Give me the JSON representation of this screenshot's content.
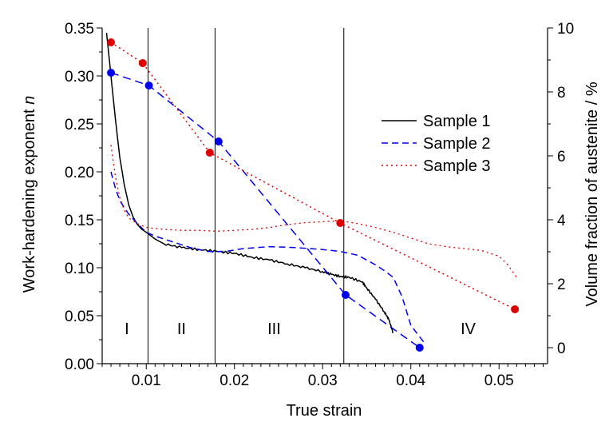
{
  "chart_data": {
    "type": "line",
    "x_axis": {
      "label": "True strain",
      "range": [
        0.005,
        0.0555
      ],
      "ticks": [
        "0.01",
        "0.02",
        "0.03",
        "0.04",
        "0.05"
      ]
    },
    "y_left_axis": {
      "label_prefix": "Work-hardening exponent ",
      "label_italic": "n",
      "range": [
        0,
        0.35
      ],
      "ticks": [
        "0.00",
        "0.05",
        "0.10",
        "0.15",
        "0.20",
        "0.25",
        "0.30",
        "0.35"
      ]
    },
    "y_right_axis": {
      "label": "Volume fraction of austenite / %",
      "range": [
        -0.5,
        10
      ],
      "ticks": [
        "0",
        "2",
        "4",
        "6",
        "8",
        "10"
      ]
    },
    "region_lines": [
      0.0102,
      0.0178,
      0.0324
    ],
    "regions": [
      {
        "label": "I",
        "x": 0.0078
      },
      {
        "label": "II",
        "x": 0.014
      },
      {
        "label": "III",
        "x": 0.0245
      },
      {
        "label": "IV",
        "x": 0.0465
      }
    ],
    "legend": {
      "position": "upper-right",
      "entries": [
        {
          "name": "Sample 1",
          "color": "#000000",
          "dash": "solid"
        },
        {
          "name": "Sample 2",
          "color": "#0000ee",
          "dash": "dashed"
        },
        {
          "name": "Sample 3",
          "color": "#dd0000",
          "dash": "dotted"
        }
      ]
    },
    "n_curves": [
      {
        "sample": "Sample 1",
        "color": "#000000",
        "dash": "solid",
        "width": 1.5,
        "jitter": true,
        "x": [
          0.0055,
          0.006,
          0.0065,
          0.007,
          0.0075,
          0.008,
          0.0085,
          0.009,
          0.0095,
          0.01,
          0.011,
          0.012,
          0.014,
          0.016,
          0.018,
          0.02,
          0.022,
          0.024,
          0.026,
          0.028,
          0.03,
          0.031,
          0.032,
          0.033,
          0.0345,
          0.035,
          0.036,
          0.037,
          0.0375,
          0.038
        ],
        "y": [
          0.345,
          0.3,
          0.255,
          0.215,
          0.187,
          0.166,
          0.153,
          0.145,
          0.14,
          0.137,
          0.13,
          0.125,
          0.121,
          0.119,
          0.117,
          0.115,
          0.111,
          0.108,
          0.104,
          0.1,
          0.096,
          0.093,
          0.091,
          0.09,
          0.085,
          0.079,
          0.067,
          0.054,
          0.046,
          0.032
        ]
      },
      {
        "sample": "Sample 2",
        "color": "#0000ee",
        "dash": "dashed",
        "width": 1.5,
        "jitter": false,
        "x": [
          0.006,
          0.0065,
          0.007,
          0.008,
          0.009,
          0.01,
          0.011,
          0.013,
          0.015,
          0.017,
          0.019,
          0.021,
          0.024,
          0.027,
          0.03,
          0.032,
          0.034,
          0.036,
          0.037,
          0.038,
          0.039,
          0.04,
          0.0415
        ],
        "y": [
          0.2,
          0.183,
          0.17,
          0.156,
          0.146,
          0.137,
          0.133,
          0.127,
          0.121,
          0.117,
          0.117,
          0.12,
          0.122,
          0.121,
          0.119,
          0.117,
          0.113,
          0.103,
          0.097,
          0.09,
          0.07,
          0.04,
          0.022
        ]
      },
      {
        "sample": "Sample 3",
        "color": "#dd0000",
        "dash": "dotted",
        "width": 1.3,
        "jitter": false,
        "x": [
          0.006,
          0.0065,
          0.007,
          0.0075,
          0.008,
          0.009,
          0.01,
          0.012,
          0.014,
          0.016,
          0.018,
          0.02,
          0.022,
          0.024,
          0.026,
          0.028,
          0.03,
          0.032,
          0.034,
          0.036,
          0.038,
          0.04,
          0.042,
          0.044,
          0.046,
          0.048,
          0.05,
          0.051,
          0.052
        ],
        "y": [
          0.228,
          0.195,
          0.173,
          0.16,
          0.152,
          0.146,
          0.142,
          0.14,
          0.139,
          0.139,
          0.138,
          0.139,
          0.14,
          0.142,
          0.145,
          0.147,
          0.148,
          0.149,
          0.146,
          0.142,
          0.137,
          0.131,
          0.125,
          0.122,
          0.12,
          0.118,
          0.112,
          0.103,
          0.09
        ]
      }
    ],
    "austenite_series": [
      {
        "sample": "Sample 2",
        "color": "#0000ee",
        "dash": "dashed",
        "x": [
          0.006,
          0.0103,
          0.0182,
          0.0326,
          0.041
        ],
        "y": [
          8.6,
          8.2,
          6.45,
          1.65,
          0
        ]
      },
      {
        "sample": "Sample 3",
        "color": "#dd0000",
        "dash": "dotted",
        "x": [
          0.006,
          0.0096,
          0.0172,
          0.032,
          0.0518
        ],
        "y": [
          9.55,
          8.9,
          6.1,
          3.9,
          1.2
        ]
      }
    ]
  }
}
